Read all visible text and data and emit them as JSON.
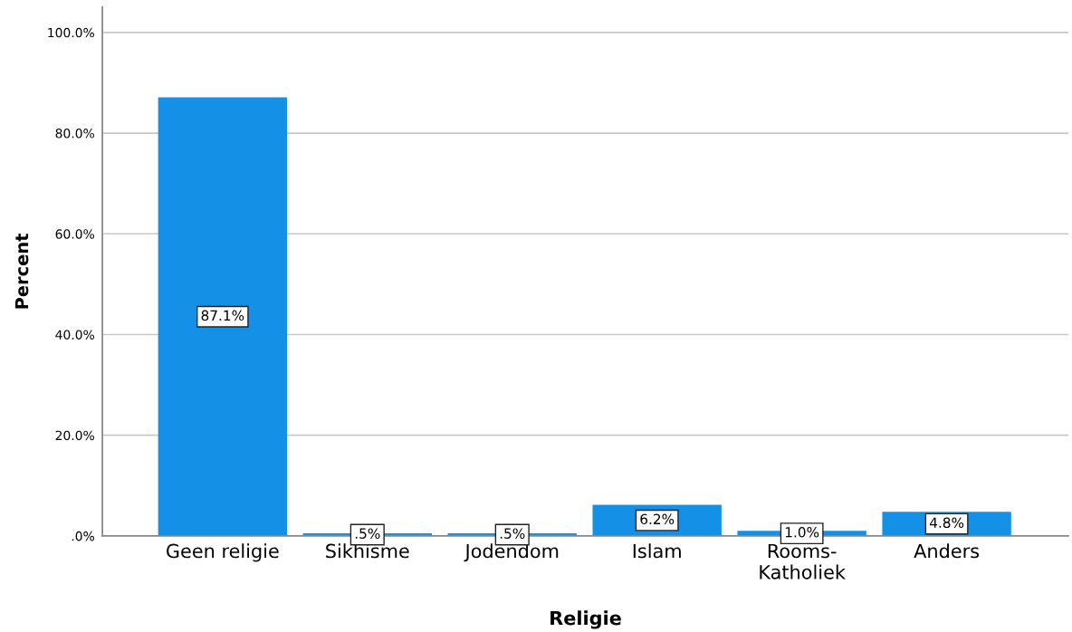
{
  "chart_data": {
    "type": "bar",
    "xlabel": "Religie",
    "ylabel": "Percent",
    "categories": [
      "Geen religie",
      "Sikhisme",
      "Jodendom",
      "Islam",
      "Rooms-\nKatholiek",
      "Anders"
    ],
    "values": [
      87.1,
      0.5,
      0.5,
      6.2,
      1.0,
      4.8
    ],
    "color": "#1490e6",
    "value_labels": [
      "87.1%",
      ".5%",
      ".5%",
      "6.2%",
      "1.0%",
      "4.8%"
    ],
    "ylim": [
      0,
      105
    ],
    "yticks": [
      {
        "value": 0,
        "label": ".0%"
      },
      {
        "value": 20,
        "label": "20.0%"
      },
      {
        "value": 40,
        "label": "40.0%"
      },
      {
        "value": 60,
        "label": "60.0%"
      },
      {
        "value": 80,
        "label": "80.0%"
      },
      {
        "value": 100,
        "label": "100.0%"
      }
    ],
    "grid": "y"
  }
}
